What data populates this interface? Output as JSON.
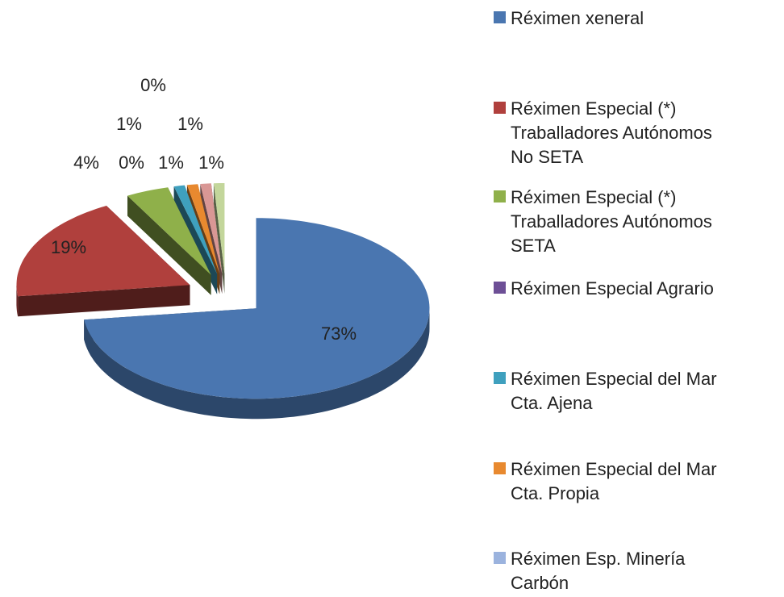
{
  "chart_data": {
    "type": "pie",
    "categories": [
      "Réximen xeneral",
      "Réximen Especial (*)\nTraballadores Autónomos\nNo SETA",
      "Réximen Especial (*)\nTraballadores Autónomos\nSETA",
      "Réximen Especial  Agrario",
      "Réximen Especial del Mar\nCta. Ajena",
      "Réximen Especial del Mar\nCta. Propia",
      "Réximen  Esp. Minería\nCarbón",
      null,
      null
    ],
    "values": [
      73,
      19,
      4,
      0,
      1,
      1,
      0,
      1,
      1
    ],
    "value_labels": [
      "73%",
      "19%",
      "4%",
      "0%",
      "1%",
      "1%",
      "0%",
      "1%",
      "1%"
    ],
    "colors": [
      "#4a76b0",
      "#b0403d",
      "#8fb04a",
      "#6d4f96",
      "#3fa0be",
      "#e8892f",
      "#9bb3de",
      "#d99795",
      "#c3d69b"
    ],
    "legend": "right"
  }
}
